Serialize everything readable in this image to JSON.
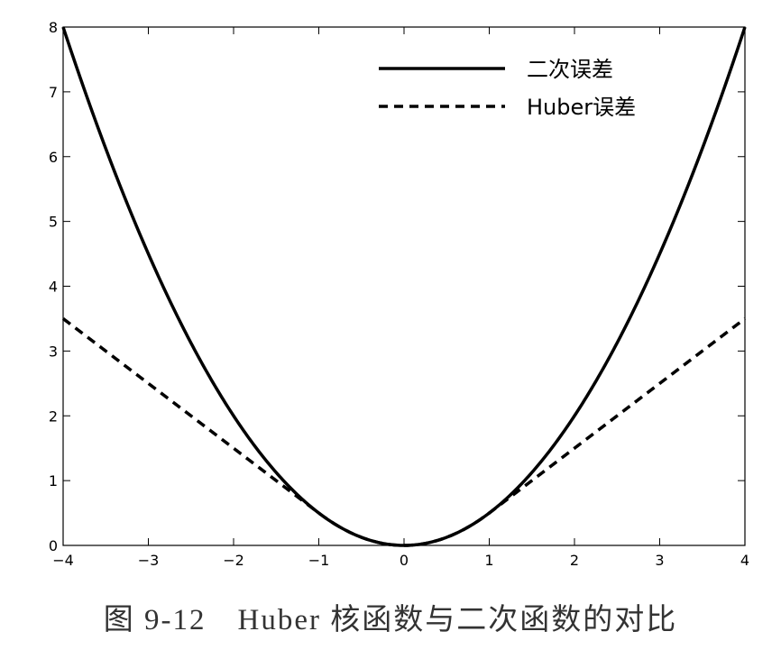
{
  "chart_data": {
    "type": "line",
    "title": "",
    "xlabel": "",
    "ylabel": "",
    "xlim": [
      -4,
      4
    ],
    "ylim": [
      0,
      8
    ],
    "grid": false,
    "legend_position": "top-right",
    "x_ticks": [
      "−4",
      "−3",
      "−2",
      "−1",
      "0",
      "1",
      "2",
      "3",
      "4"
    ],
    "y_ticks": [
      "0",
      "1",
      "2",
      "3",
      "4",
      "5",
      "6",
      "7",
      "8"
    ],
    "series": [
      {
        "name": "二次误差",
        "style": "solid",
        "color": "#000000",
        "x": [
          -4,
          -3.5,
          -3,
          -2.5,
          -2,
          -1.5,
          -1,
          -0.5,
          0,
          0.5,
          1,
          1.5,
          2,
          2.5,
          3,
          3.5,
          4
        ],
        "y": [
          8,
          6.125,
          4.5,
          3.125,
          2,
          1.125,
          0.5,
          0.125,
          0,
          0.125,
          0.5,
          1.125,
          2,
          3.125,
          4.5,
          6.125,
          8
        ]
      },
      {
        "name": "Huber误差",
        "style": "dashed",
        "color": "#000000",
        "x": [
          -4,
          -3,
          -2,
          -1,
          -0.5,
          0,
          0.5,
          1,
          2,
          3,
          4
        ],
        "y": [
          3.5,
          2.5,
          1.5,
          0.5,
          0.125,
          0,
          0.125,
          0.5,
          1.5,
          2.5,
          3.5
        ]
      }
    ]
  },
  "caption": "图 9-12　Huber 核函数与二次函数的对比"
}
